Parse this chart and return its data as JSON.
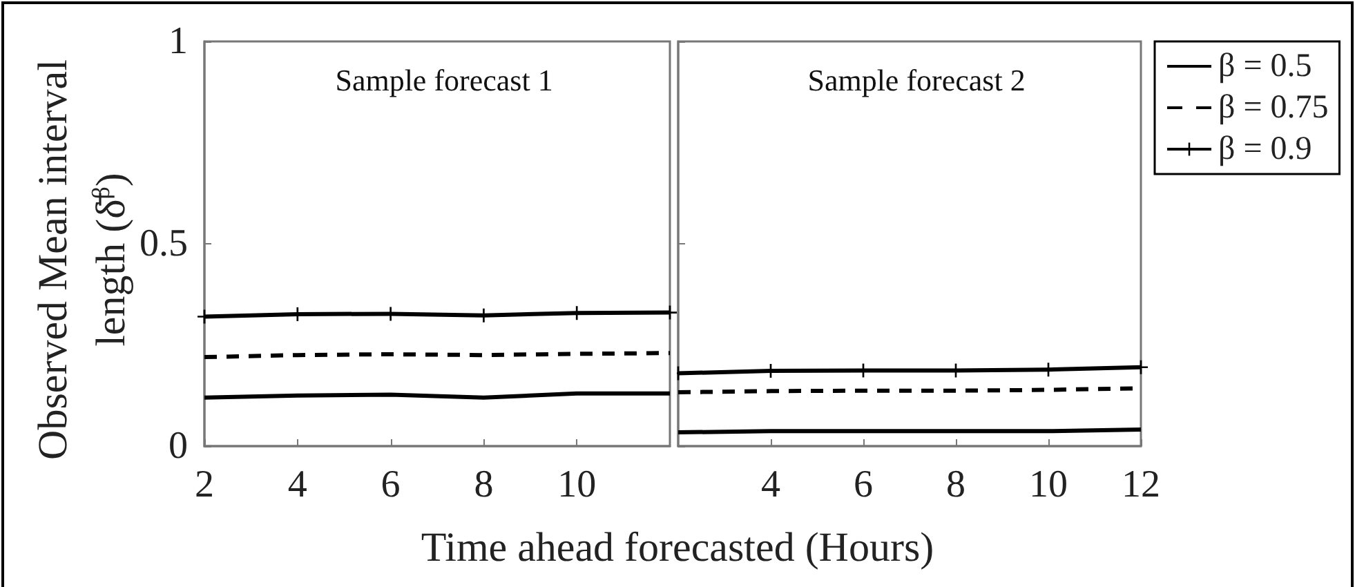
{
  "chart_data": [
    {
      "type": "line",
      "title": "Sample forecast 1",
      "xlabel": "Time ahead forecasted (Hours)",
      "ylabel": "Observed Mean interval length (δ̄$^{β}$)",
      "x": [
        2,
        4,
        6,
        8,
        10,
        12
      ],
      "xlim": [
        2,
        12
      ],
      "xticks": [
        2,
        4,
        6,
        8,
        10
      ],
      "ylim": [
        0,
        1
      ],
      "yticks": [
        0,
        0.5,
        1
      ],
      "grid": false,
      "legend": false,
      "series": [
        {
          "color": "#000000",
          "line_style": "solid",
          "marker": "none",
          "values": [
            0.12,
            0.125,
            0.127,
            0.12,
            0.13,
            0.13
          ]
        },
        {
          "color": "#000000",
          "line_style": "dashed",
          "marker": "none",
          "values": [
            0.22,
            0.225,
            0.227,
            0.225,
            0.228,
            0.23
          ]
        },
        {
          "color": "#000000",
          "line_style": "solid",
          "marker": "cross",
          "values": [
            0.32,
            0.326,
            0.327,
            0.323,
            0.329,
            0.33
          ]
        }
      ]
    },
    {
      "type": "line",
      "title": "Sample forecast 2",
      "x": [
        2,
        4,
        6,
        8,
        10,
        12
      ],
      "xlim": [
        2,
        12
      ],
      "xticks": [
        4,
        6,
        8,
        10,
        12
      ],
      "ylim": [
        0,
        1
      ],
      "yticks": [
        0,
        0.5,
        1
      ],
      "tick_labels": "x",
      "grid": false,
      "legend": "right",
      "series": [
        {
          "name": "β = 0.5",
          "color": "#000000",
          "line_style": "solid",
          "marker": "none",
          "values": [
            0.034,
            0.037,
            0.037,
            0.037,
            0.037,
            0.041
          ]
        },
        {
          "name": "β = 0.75",
          "color": "#000000",
          "line_style": "dashed",
          "marker": "none",
          "values": [
            0.133,
            0.136,
            0.137,
            0.137,
            0.139,
            0.143
          ]
        },
        {
          "name": "β = 0.9",
          "color": "#000000",
          "line_style": "solid",
          "marker": "cross",
          "values": [
            0.18,
            0.186,
            0.187,
            0.187,
            0.189,
            0.195
          ]
        }
      ]
    }
  ]
}
